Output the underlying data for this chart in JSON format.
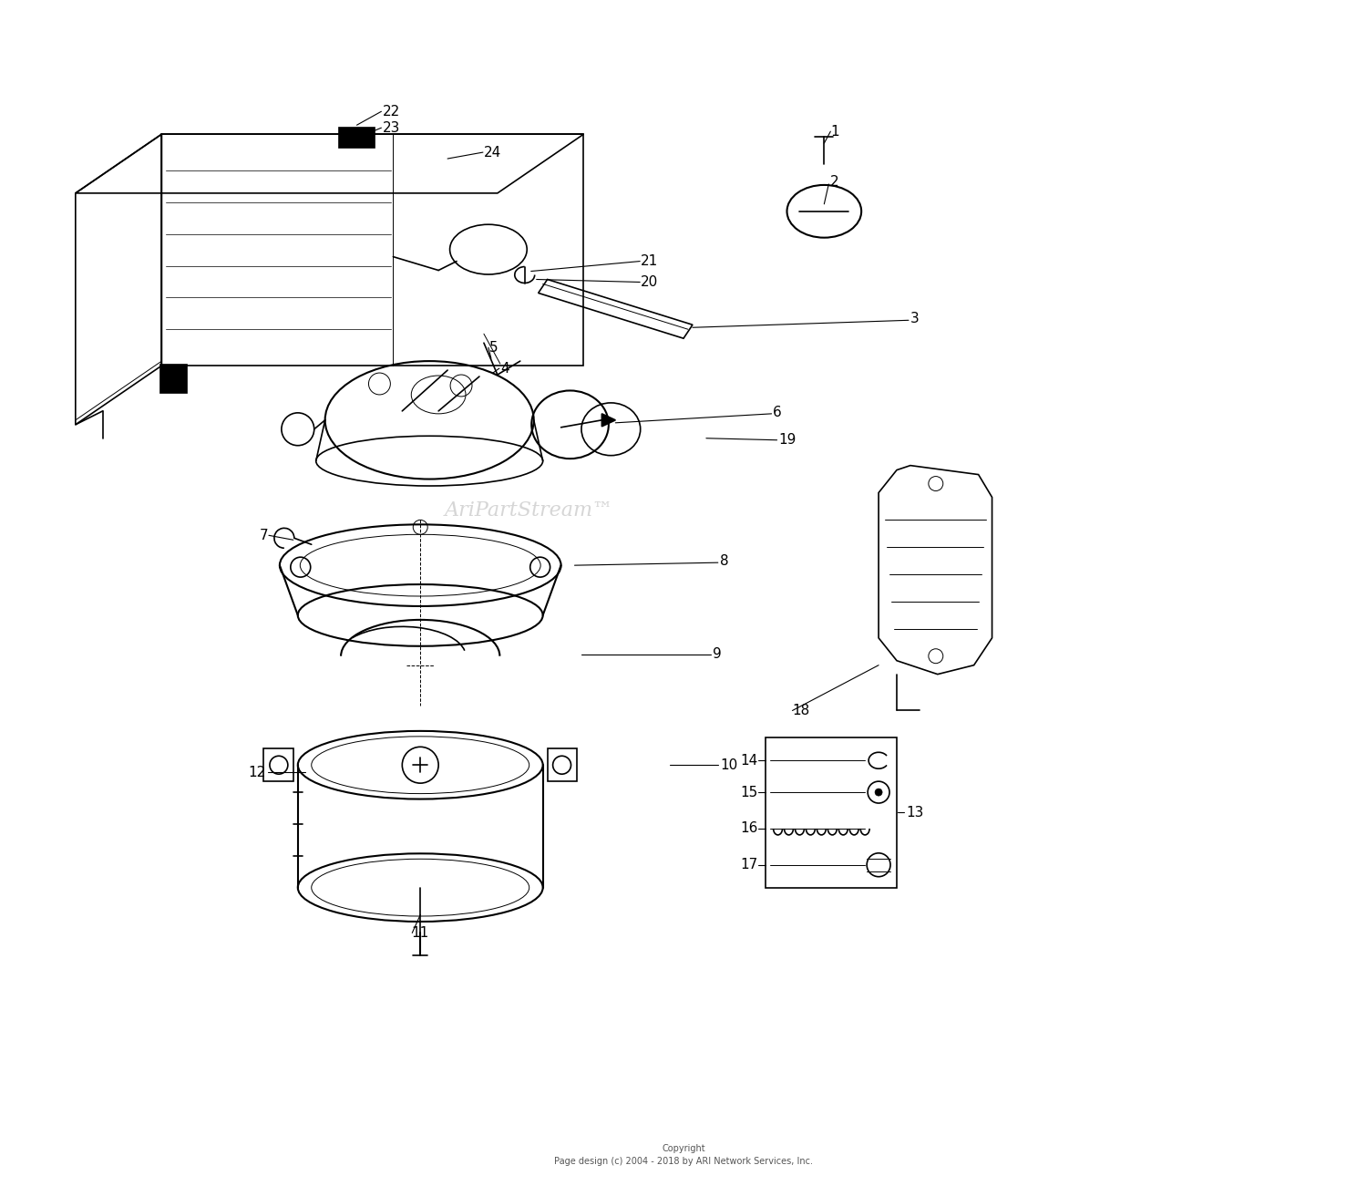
{
  "background_color": "#ffffff",
  "fig_width": 15.0,
  "fig_height": 13.12,
  "copyright_text": "Copyright\nPage design (c) 2004 - 2018 by ARI Network Services, Inc.",
  "watermark_text": "AriPartStream™",
  "lw_main": 1.2,
  "lw_thin": 0.7,
  "lw_thick": 1.5
}
